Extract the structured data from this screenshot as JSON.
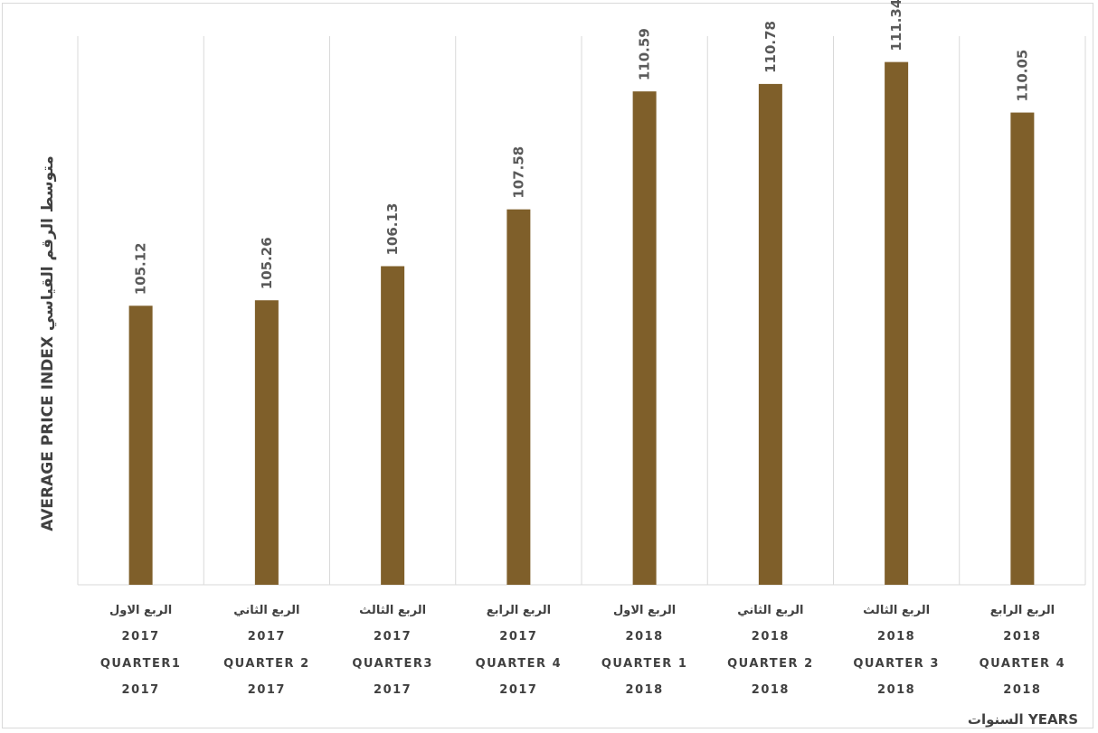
{
  "chart_data": {
    "type": "bar",
    "categories": [
      [
        "الربع الاول",
        "2017",
        "QUARTER1",
        "2017"
      ],
      [
        "الربع الثاني",
        "2017",
        "QUARTER 2",
        "2017"
      ],
      [
        "الربع الثالث",
        "2017",
        "QUARTER3",
        "2017"
      ],
      [
        "الربع الرابع",
        "2017",
        "QUARTER  4",
        "2017"
      ],
      [
        "الربع الاول",
        "2018",
        "QUARTER 1",
        "2018"
      ],
      [
        "الربع الثاني",
        "2018",
        "QUARTER 2",
        "2018"
      ],
      [
        "الربع الثالث",
        "2018",
        "QUARTER 3",
        "2018"
      ],
      [
        "الربع الرابع",
        "2018",
        "QUARTER  4",
        "2018"
      ]
    ],
    "values": [
      105.12,
      105.26,
      106.13,
      107.58,
      110.59,
      110.78,
      111.34,
      110.05
    ],
    "value_labels": [
      "105.12",
      "105.26",
      "106.13",
      "107.58",
      "110.59",
      "110.78",
      "111.34",
      "110.05"
    ],
    "xlabel": "السنوات YEARS",
    "ylabel": "AVERAGE PRICE INDEX  متوسط الرقم القياسي",
    "ylim": [
      98,
      112
    ],
    "grid": "vertical",
    "bar_color": "#7f5f2a"
  }
}
